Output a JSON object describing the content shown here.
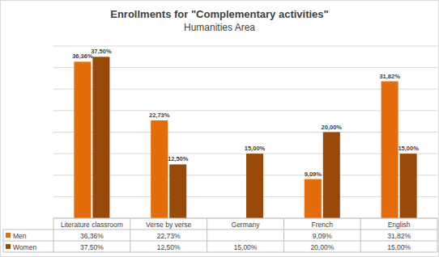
{
  "chart_data": {
    "type": "bar",
    "title": "Enrollments for \"Complementary activities\"",
    "subtitle": "Humanities Area",
    "categories": [
      "Literature classroom",
      "Verse by verse",
      "Germany",
      "French",
      "English"
    ],
    "series": [
      {
        "name": "Men",
        "color": "#e46c0a",
        "values": [
          36.36,
          22.73,
          null,
          9.09,
          31.82
        ],
        "value_labels": [
          "36,36%",
          "22,73%",
          null,
          "9,09%",
          "31,82%"
        ]
      },
      {
        "name": "Women",
        "color": "#984807",
        "values": [
          37.5,
          12.5,
          15,
          20,
          15
        ],
        "value_labels": [
          "37,50%",
          "12,50%",
          "15,00%",
          "20,00%",
          "15,00%"
        ]
      }
    ],
    "ylim": [
      0,
      40
    ],
    "yticks": [
      0,
      5,
      10,
      15,
      20,
      25,
      30,
      35,
      40
    ],
    "grid": true,
    "data_labels": true,
    "tick_labels": "x",
    "legend": "bottom"
  }
}
